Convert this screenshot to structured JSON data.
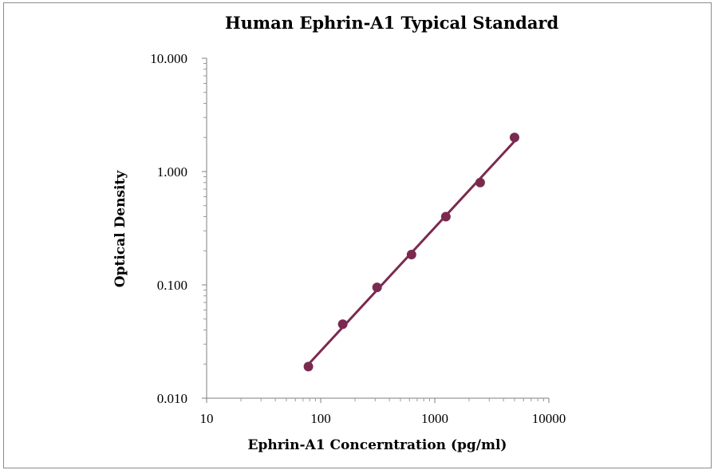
{
  "chart_data": {
    "type": "scatter",
    "title": "Human Ephrin-A1 Typical Standard",
    "xlabel": "Ephrin-A1 Concerntration (pg/ml)",
    "ylabel": "Optical Density",
    "x_scale": "log",
    "y_scale": "log",
    "xlim": [
      10,
      10000
    ],
    "ylim": [
      0.01,
      10
    ],
    "x_ticks": [
      "10",
      "100",
      "1000",
      "10000"
    ],
    "y_ticks": [
      "0.010",
      "0.100",
      "1.000",
      "10.000"
    ],
    "grid": false,
    "legend": "none",
    "series": [
      {
        "x": [
          78,
          156,
          312,
          625,
          1250,
          2500,
          5000
        ],
        "y": [
          0.019,
          0.045,
          0.095,
          0.185,
          0.4,
          0.8,
          2.0
        ],
        "color": "#7b2a4f",
        "fit_line": true
      }
    ]
  }
}
